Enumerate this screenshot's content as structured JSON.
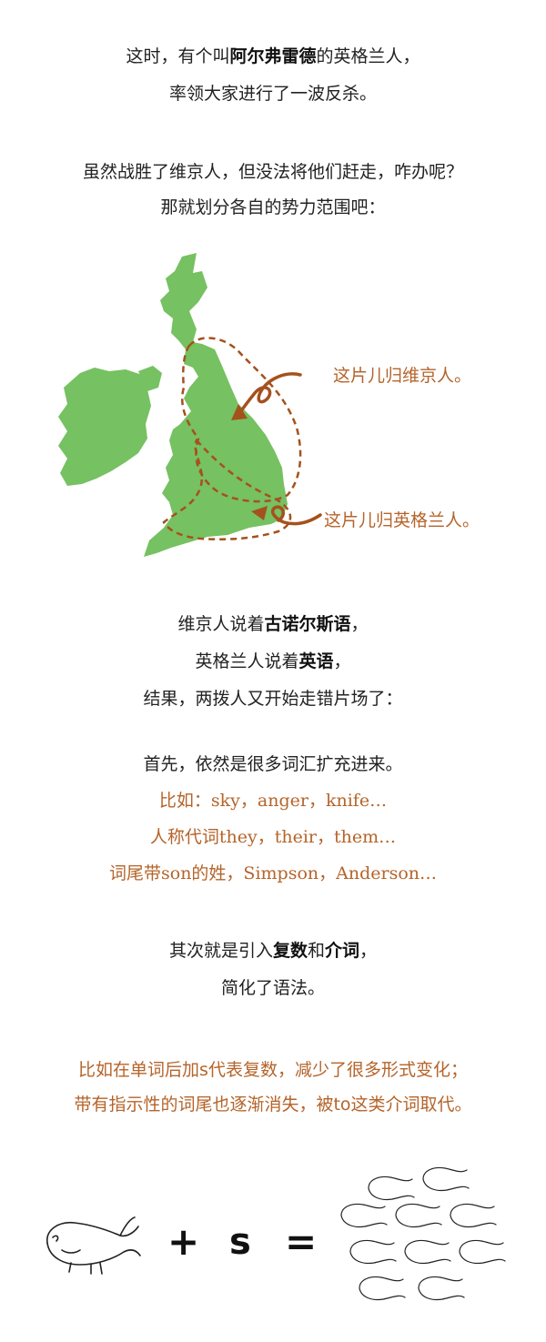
{
  "intro": {
    "line1_pre": "这时，有个叫",
    "line1_bold": "阿尔弗雷德",
    "line1_post": "的英格兰人，",
    "line2": "率领大家进行了一波反杀。"
  },
  "division": {
    "line1": "虽然战胜了维京人，但没法将他们赶走，咋办呢？",
    "line2": "那就划分各自的势力范围吧："
  },
  "map": {
    "label_north": "这片儿归维京人。",
    "label_south": "这片儿归英格兰人。",
    "land_color": "#76c162",
    "route_color": "#a5511d"
  },
  "languages": {
    "line1_pre": "维京人说着",
    "line1_bold": "古诺尔斯语",
    "line1_post": "，",
    "line2_pre": "英格兰人说着",
    "line2_bold": "英语",
    "line2_post": "，",
    "line3": "结果，两拨人又开始走错片场了："
  },
  "vocab": {
    "intro": "首先，依然是很多词汇扩充进来。",
    "example1": "比如：sky，anger，knife…",
    "example2": "人称代词they，their，them…",
    "example3": "词尾带son的姓，Simpson，Anderson…"
  },
  "grammar": {
    "line1_pre": "其次就是引入",
    "line1_bold1": "复数",
    "line1_mid": "和",
    "line1_bold2": "介词",
    "line1_post": "，",
    "line2": "简化了语法。"
  },
  "details": {
    "line1": "比如在单词后加s代表复数，减少了很多形式变化；",
    "line2": "带有指示性的词尾也逐渐消失，被to这类介词取代。"
  },
  "equation": {
    "plus": "+",
    "letter": "s",
    "equals": "="
  }
}
